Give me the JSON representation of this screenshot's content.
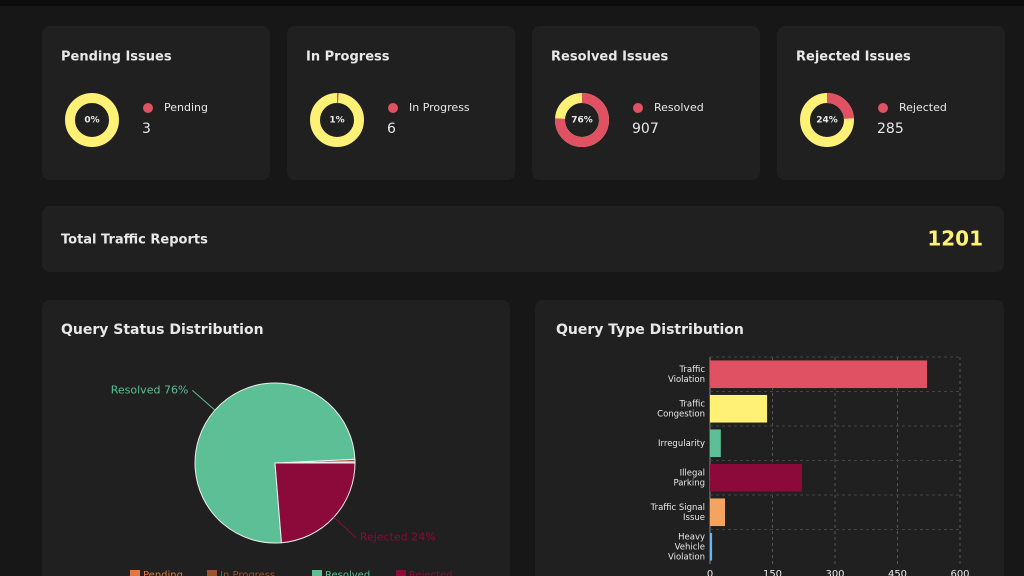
{
  "cards": [
    {
      "title": "Pending Issues",
      "label": "Pending",
      "count": 3,
      "percent": 0,
      "percent_label": "0%"
    },
    {
      "title": "In Progress",
      "label": "In Progress",
      "count": 6,
      "percent": 1,
      "percent_label": "1%"
    },
    {
      "title": "Resolved Issues",
      "label": "Resolved",
      "count": 907,
      "percent": 76,
      "percent_label": "76%"
    },
    {
      "title": "Rejected Issues",
      "label": "Rejected",
      "count": 285,
      "percent": 24,
      "percent_label": "24%"
    }
  ],
  "donut_colors": {
    "part": "#e05263",
    "rest": "#fff176"
  },
  "total": {
    "title": "Total Traffic Reports",
    "value": 1201
  },
  "chart_data": [
    {
      "type": "pie",
      "title": "Query Status Distribution",
      "categories": [
        "Pending",
        "In Progress",
        "Resolved",
        "Rejected"
      ],
      "values": [
        0.25,
        0.5,
        75.5,
        23.7
      ],
      "value_labels": [
        null,
        null,
        "Resolved 76%",
        "Rejected 24%"
      ],
      "colors": [
        "#e07a3c",
        "#a0522d",
        "#5cbf95",
        "#8b0a3a"
      ],
      "legend": "bottom"
    },
    {
      "type": "hbar",
      "title": "Query Type Distribution",
      "categories": [
        [
          "Traffic",
          "Violation"
        ],
        [
          "Traffic",
          "Congestion"
        ],
        [
          "Irregularity"
        ],
        [
          "Illegal",
          "Parking"
        ],
        [
          "Traffic Signal",
          "Issue"
        ],
        [
          "Heavy",
          "Vehicle",
          "Violation"
        ]
      ],
      "values": [
        521,
        137,
        26,
        221,
        36,
        5
      ],
      "colors": [
        "#e05263",
        "#fff176",
        "#5cbf95",
        "#8b0a3a",
        "#f4a460",
        "#64b5f6"
      ],
      "xlim": [
        0,
        600
      ],
      "xticks": [
        0,
        150,
        300,
        450,
        600
      ],
      "grid": true
    }
  ]
}
